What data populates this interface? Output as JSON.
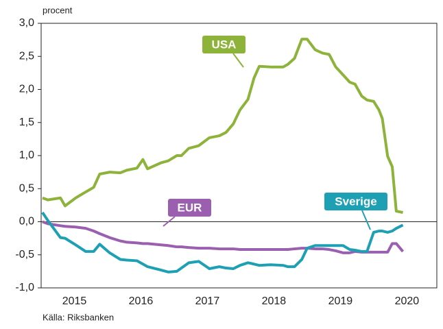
{
  "chart_data": {
    "type": "line",
    "y_axis_label": "procent",
    "source": "Källa: Riksbanken",
    "x": [
      2015.02,
      2015.1,
      2015.29,
      2015.36,
      2015.52,
      2015.67,
      2015.79,
      2015.88,
      2016.03,
      2016.19,
      2016.29,
      2016.44,
      2016.53,
      2016.6,
      2016.8,
      2016.91,
      2017.04,
      2017.11,
      2017.22,
      2017.37,
      2017.53,
      2017.68,
      2017.78,
      2017.89,
      2017.99,
      2018.11,
      2018.2,
      2018.28,
      2018.45,
      2018.64,
      2018.71,
      2018.81,
      2018.92,
      2019.0,
      2019.12,
      2019.23,
      2019.33,
      2019.43,
      2019.54,
      2019.64,
      2019.72,
      2019.82,
      2019.9,
      2020.0,
      2020.08,
      2020.13,
      2020.21,
      2020.28,
      2020.34,
      2020.44
    ],
    "series": [
      {
        "name": "USA",
        "color": "#8db33a",
        "values": [
          0.36,
          0.33,
          0.36,
          0.24,
          0.36,
          0.45,
          0.52,
          0.72,
          0.75,
          0.74,
          0.78,
          0.81,
          0.94,
          0.8,
          0.89,
          0.92,
          1.0,
          1.0,
          1.11,
          1.15,
          1.27,
          1.3,
          1.35,
          1.48,
          1.69,
          1.85,
          2.17,
          2.35,
          2.34,
          2.34,
          2.38,
          2.47,
          2.76,
          2.76,
          2.6,
          2.55,
          2.53,
          2.34,
          2.22,
          2.11,
          2.08,
          1.9,
          1.84,
          1.82,
          1.69,
          1.56,
          0.99,
          0.83,
          0.16,
          0.14
        ]
      },
      {
        "name": "EUR",
        "color": "#9b5fb0",
        "values": [
          0.0,
          -0.03,
          -0.06,
          -0.07,
          -0.08,
          -0.1,
          -0.14,
          -0.18,
          -0.24,
          -0.29,
          -0.31,
          -0.32,
          -0.33,
          -0.33,
          -0.35,
          -0.36,
          -0.38,
          -0.38,
          -0.39,
          -0.4,
          -0.4,
          -0.41,
          -0.41,
          -0.41,
          -0.42,
          -0.42,
          -0.42,
          -0.42,
          -0.42,
          -0.42,
          -0.42,
          -0.41,
          -0.4,
          -0.4,
          -0.41,
          -0.41,
          -0.42,
          -0.44,
          -0.47,
          -0.47,
          -0.45,
          -0.46,
          -0.46,
          -0.46,
          -0.46,
          -0.46,
          -0.46,
          -0.33,
          -0.33,
          -0.45
        ]
      },
      {
        "name": "Sverige",
        "color": "#1ea0b4",
        "values": [
          0.14,
          0.02,
          -0.24,
          -0.25,
          -0.35,
          -0.45,
          -0.45,
          -0.34,
          -0.47,
          -0.57,
          -0.58,
          -0.59,
          -0.64,
          -0.68,
          -0.73,
          -0.76,
          -0.75,
          -0.7,
          -0.62,
          -0.6,
          -0.71,
          -0.68,
          -0.7,
          -0.71,
          -0.66,
          -0.62,
          -0.64,
          -0.66,
          -0.65,
          -0.66,
          -0.68,
          -0.68,
          -0.57,
          -0.4,
          -0.36,
          -0.36,
          -0.36,
          -0.36,
          -0.36,
          -0.42,
          -0.43,
          -0.45,
          -0.45,
          -0.16,
          -0.14,
          -0.14,
          -0.16,
          -0.14,
          -0.1,
          -0.05
        ]
      }
    ],
    "xlim": [
      2015,
      2020.95
    ],
    "xticks": [
      {
        "value": 2015.5,
        "label": "2015"
      },
      {
        "value": 2016.5,
        "label": "2016"
      },
      {
        "value": 2017.5,
        "label": "2017"
      },
      {
        "value": 2018.5,
        "label": "2018"
      },
      {
        "value": 2019.5,
        "label": "2019"
      },
      {
        "value": 2020.5,
        "label": "2020"
      }
    ],
    "ylim": [
      -1,
      3
    ],
    "yticks": [
      {
        "value": 3,
        "label": "3,0"
      },
      {
        "value": 2.5,
        "label": "2,5"
      },
      {
        "value": 2,
        "label": "2,0"
      },
      {
        "value": 1.5,
        "label": "1,5"
      },
      {
        "value": 1,
        "label": "1,0"
      },
      {
        "value": 0.5,
        "label": "0,5"
      },
      {
        "value": 0,
        "label": "0,0"
      },
      {
        "value": -0.5,
        "label": "-0,5"
      },
      {
        "value": -1,
        "label": "-1,0"
      }
    ]
  }
}
